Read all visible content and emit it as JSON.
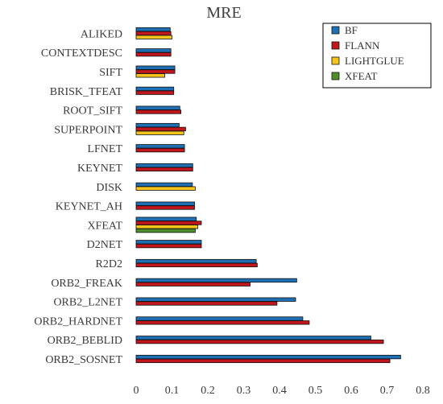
{
  "chart_data": {
    "type": "bar",
    "orientation": "horizontal",
    "title": "MRE",
    "xlabel": "",
    "ylabel": "",
    "xlim": [
      0,
      0.8
    ],
    "xticks": [
      "0",
      "0.1",
      "0.2",
      "0.3",
      "0.4",
      "0.5",
      "0.6",
      "0.7",
      "0.8"
    ],
    "grid": false,
    "legend_position": "top-right",
    "categories": [
      "ALIKED",
      "CONTEXTDESC",
      "SIFT",
      "BRISK_TFEAT",
      "ROOT_SIFT",
      "SUPERPOINT",
      "LFNET",
      "KEYNET",
      "DISK",
      "KEYNET_AH",
      "XFEAT",
      "D2NET",
      "R2D2",
      "ORB2_FREAK",
      "ORB2_L2NET",
      "ORB2_HARDNET",
      "ORB2_BEBLID",
      "ORB2_SOSNET"
    ],
    "series": [
      {
        "name": "BF",
        "color": "#1f6fb5",
        "values": [
          0.095,
          0.097,
          0.108,
          0.105,
          0.122,
          0.12,
          0.135,
          0.158,
          0.157,
          0.163,
          0.168,
          0.182,
          0.335,
          0.448,
          0.445,
          0.465,
          0.655,
          0.738
        ]
      },
      {
        "name": "FLANN",
        "color": "#c0161c",
        "values": [
          0.097,
          0.097,
          0.108,
          0.105,
          0.125,
          0.138,
          0.135,
          0.158,
          null,
          0.163,
          0.182,
          0.182,
          0.338,
          0.318,
          0.393,
          0.483,
          0.69,
          0.708
        ]
      },
      {
        "name": "LIGHTGLUE",
        "color": "#f7c41b",
        "values": [
          0.1,
          null,
          0.08,
          null,
          null,
          0.133,
          null,
          null,
          0.165,
          null,
          0.172,
          null,
          null,
          null,
          null,
          null,
          null,
          null
        ]
      },
      {
        "name": "XFEAT",
        "color": "#4e8f2b",
        "values": [
          null,
          null,
          null,
          null,
          null,
          null,
          null,
          null,
          null,
          null,
          0.165,
          null,
          null,
          null,
          null,
          null,
          null,
          null
        ]
      }
    ]
  }
}
